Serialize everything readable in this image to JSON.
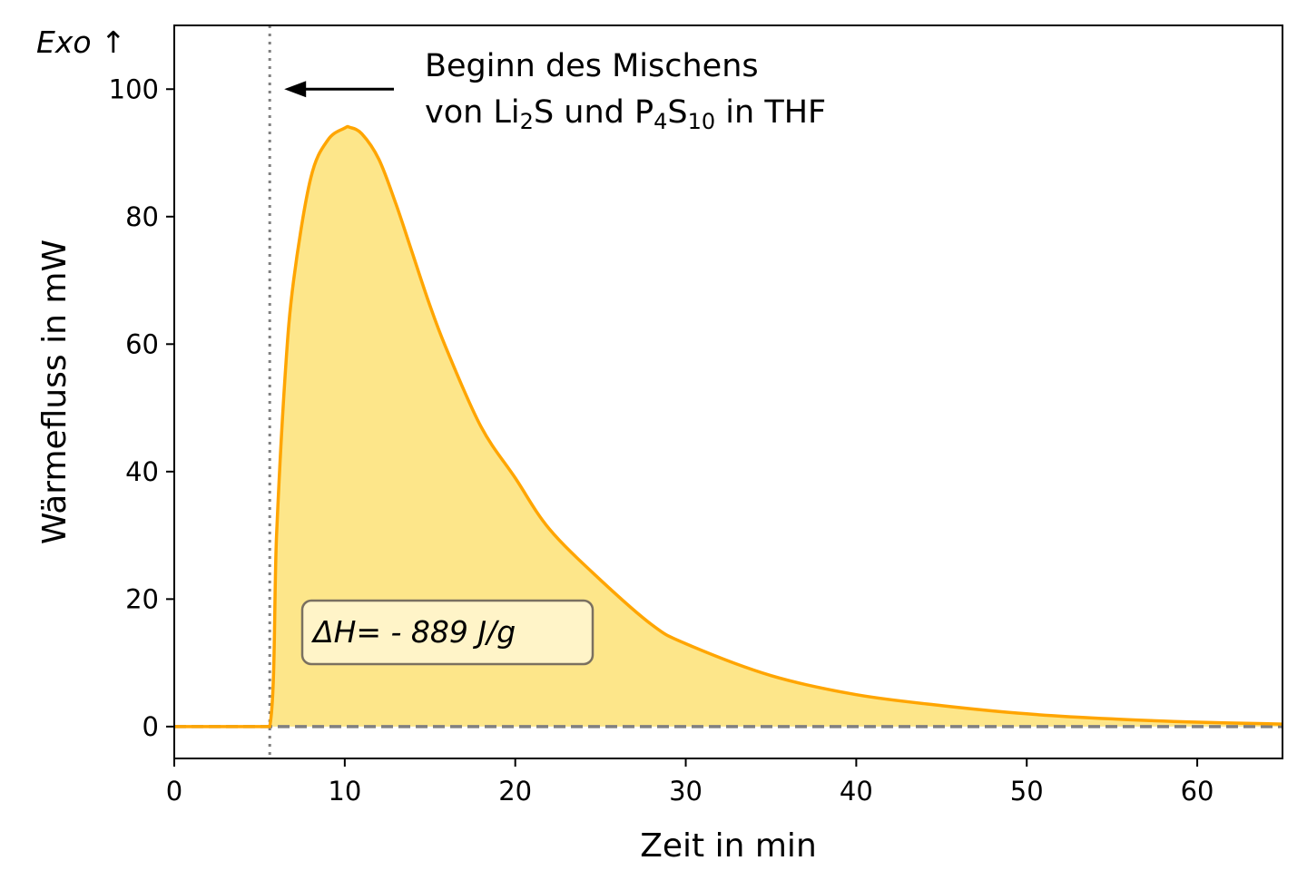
{
  "chart_data": {
    "type": "area",
    "title": "",
    "xlabel": "Zeit in min",
    "ylabel": "Wärmefluss in mW",
    "xlim": [
      0,
      65
    ],
    "ylim": [
      -5,
      110
    ],
    "xticks": [
      "0",
      "10",
      "20",
      "30",
      "40",
      "50",
      "60"
    ],
    "yticks": [
      "0",
      "20",
      "40",
      "60",
      "80",
      "100"
    ],
    "grid": false,
    "series": [
      {
        "color": "#ffa500",
        "fill_color": "#fde68a",
        "x": [
          0,
          2,
          4,
          5.6,
          6,
          6.5,
          7,
          8,
          9,
          10,
          10.3,
          11,
          12,
          13,
          14,
          15,
          16,
          18,
          20,
          22,
          25,
          28,
          30,
          35,
          40,
          45,
          50,
          55,
          60,
          65
        ],
        "y": [
          0,
          0,
          0,
          0,
          30,
          55,
          70,
          86,
          92,
          93.9,
          94,
          93,
          89,
          82,
          74,
          66,
          59,
          47,
          39,
          31,
          23,
          16,
          13,
          8,
          5,
          3.3,
          2,
          1.2,
          0.7,
          0.4
        ]
      }
    ],
    "baseline": {
      "y": 0,
      "color": "#808080",
      "style": "dashed"
    },
    "mixing_start": {
      "x": 5.6,
      "color": "#808080",
      "style": "dotted"
    },
    "annotation": {
      "line1": "Beginn des Mischens",
      "line2_parts": [
        "von Li",
        "2",
        "S und P",
        "4",
        "S",
        "10",
        " in THF"
      ]
    },
    "exo_label": "Exo ↑",
    "enthalpy_label": "ΔH= - 889 J/g"
  }
}
